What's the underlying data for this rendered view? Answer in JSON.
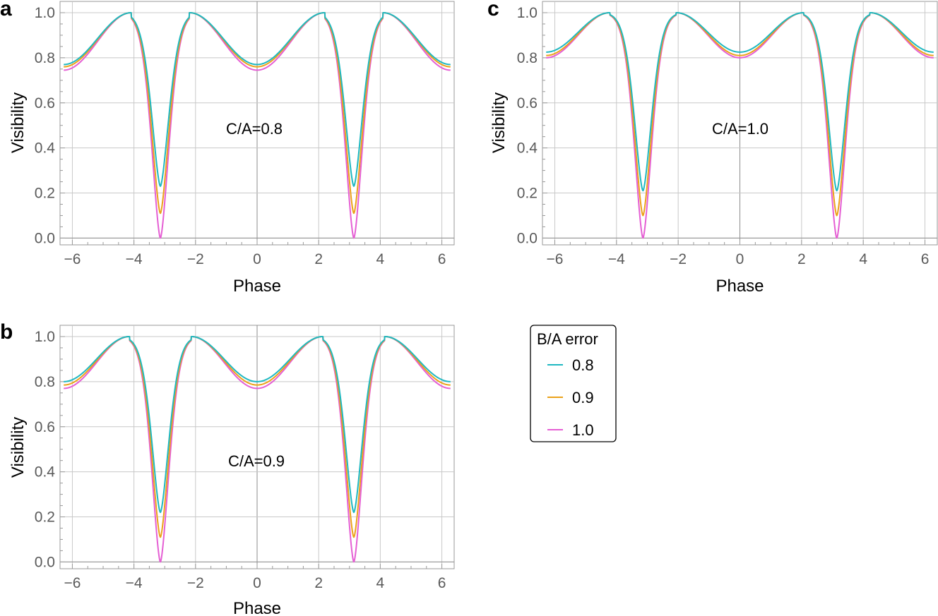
{
  "colors": {
    "series": [
      "#1fb8c1",
      "#eba21a",
      "#e55fd4"
    ],
    "grid": "#c8c8c8",
    "axis": "#8c8c8c",
    "frame": "#999999",
    "tick_text": "#5a5a5a"
  },
  "legend": {
    "title": "B/A error",
    "entries": [
      "0.8",
      "0.9",
      "1.0"
    ]
  },
  "chart_data": [
    {
      "id": "a",
      "type": "line",
      "panel_label": "a",
      "annotation": "C/A=0.8",
      "xlabel": "Phase",
      "ylabel": "Visibility",
      "xlim": [
        -6.4,
        6.4
      ],
      "ylim": [
        -0.03,
        1.05
      ],
      "xticks": [
        -6,
        -4,
        -2,
        0,
        2,
        4,
        6
      ],
      "xtick_labels": [
        "−6",
        "−4",
        "−2",
        "0",
        "2",
        "4",
        "6"
      ],
      "yticks": [
        0.0,
        0.2,
        0.4,
        0.6,
        0.8,
        1.0
      ],
      "ytick_labels": [
        "0.0",
        "0.2",
        "0.4",
        "0.6",
        "0.8",
        "1.0"
      ],
      "grid": true,
      "x_domain": [
        -6.28,
        6.28
      ],
      "series": [
        {
          "name": "0.8",
          "peaks": [
            2.2,
            4.1
          ],
          "mid_value": 0.77,
          "dip_value": 0.23
        },
        {
          "name": "0.9",
          "peaks": [
            2.2,
            4.1
          ],
          "mid_value": 0.76,
          "dip_value": 0.11
        },
        {
          "name": "1.0",
          "peaks": [
            2.2,
            4.1
          ],
          "mid_value": 0.745,
          "dip_value": 0.0
        }
      ]
    },
    {
      "id": "b",
      "type": "line",
      "panel_label": "b",
      "annotation": "C/A=0.9",
      "xlabel": "Phase",
      "ylabel": "Visibility",
      "xlim": [
        -6.4,
        6.4
      ],
      "ylim": [
        -0.03,
        1.05
      ],
      "xticks": [
        -6,
        -4,
        -2,
        0,
        2,
        4,
        6
      ],
      "xtick_labels": [
        "−6",
        "−4",
        "−2",
        "0",
        "2",
        "4",
        "6"
      ],
      "yticks": [
        0.0,
        0.2,
        0.4,
        0.6,
        0.8,
        1.0
      ],
      "ytick_labels": [
        "0.0",
        "0.2",
        "0.4",
        "0.6",
        "0.8",
        "1.0"
      ],
      "grid": true,
      "x_domain": [
        -6.28,
        6.28
      ],
      "series": [
        {
          "name": "0.8",
          "peaks": [
            2.14,
            4.15
          ],
          "mid_value": 0.8,
          "dip_value": 0.22
        },
        {
          "name": "0.9",
          "peaks": [
            2.14,
            4.15
          ],
          "mid_value": 0.785,
          "dip_value": 0.11
        },
        {
          "name": "1.0",
          "peaks": [
            2.14,
            4.15
          ],
          "mid_value": 0.77,
          "dip_value": 0.0
        }
      ]
    },
    {
      "id": "c",
      "type": "line",
      "panel_label": "c",
      "annotation": "C/A=1.0",
      "xlabel": "Phase",
      "ylabel": "Visibility",
      "xlim": [
        -6.4,
        6.4
      ],
      "ylim": [
        -0.03,
        1.05
      ],
      "xticks": [
        -6,
        -4,
        -2,
        0,
        2,
        4,
        6
      ],
      "xtick_labels": [
        "−6",
        "−4",
        "−2",
        "0",
        "2",
        "4",
        "6"
      ],
      "yticks": [
        0.0,
        0.2,
        0.4,
        0.6,
        0.8,
        1.0
      ],
      "ytick_labels": [
        "0.0",
        "0.2",
        "0.4",
        "0.6",
        "0.8",
        "1.0"
      ],
      "grid": true,
      "x_domain": [
        -6.28,
        6.28
      ],
      "series": [
        {
          "name": "0.8",
          "peaks": [
            2.07,
            4.21
          ],
          "mid_value": 0.825,
          "dip_value": 0.21
        },
        {
          "name": "0.9",
          "peaks": [
            2.07,
            4.21
          ],
          "mid_value": 0.81,
          "dip_value": 0.1
        },
        {
          "name": "1.0",
          "peaks": [
            2.07,
            4.21
          ],
          "mid_value": 0.8,
          "dip_value": 0.0
        }
      ]
    }
  ]
}
